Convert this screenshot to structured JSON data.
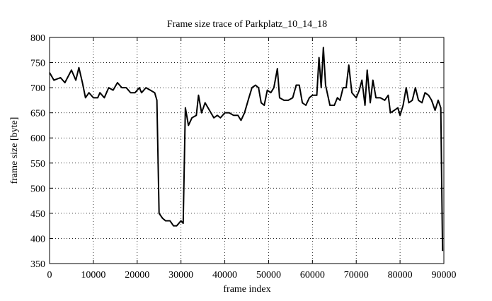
{
  "chart_data": {
    "type": "line",
    "title": "Frame size trace of Parkplatz_10_14_18",
    "xlabel": "frame index",
    "ylabel": "frame size [byte]",
    "xlim": [
      0,
      90000
    ],
    "ylim": [
      350,
      800
    ],
    "xticks": [
      0,
      10000,
      20000,
      30000,
      40000,
      50000,
      60000,
      70000,
      80000,
      90000
    ],
    "yticks": [
      350,
      400,
      450,
      500,
      550,
      600,
      650,
      700,
      750,
      800
    ],
    "grid": true,
    "series": [
      {
        "name": "Parkplatz_10_14_18",
        "color": "#000000",
        "x": [
          0,
          1000,
          2500,
          3500,
          5000,
          6000,
          6700,
          7500,
          8200,
          9000,
          10000,
          11000,
          11500,
          12500,
          13500,
          14500,
          15500,
          16500,
          17500,
          18500,
          19500,
          20500,
          21000,
          22000,
          23000,
          24000,
          24500,
          25000,
          25800,
          26500,
          27500,
          28300,
          29000,
          30000,
          30500,
          31000,
          31700,
          32500,
          33500,
          34000,
          34700,
          35500,
          36500,
          37500,
          38300,
          39000,
          40000,
          41000,
          42000,
          43000,
          43700,
          44500,
          45500,
          46200,
          47000,
          47700,
          48300,
          49000,
          49700,
          50500,
          51200,
          52000,
          52500,
          53500,
          54500,
          55500,
          56300,
          57000,
          57700,
          58500,
          59300,
          60000,
          61000,
          61500,
          62000,
          62500,
          63000,
          64000,
          65000,
          65700,
          66300,
          67000,
          67700,
          68300,
          69000,
          70000,
          70700,
          71300,
          72000,
          72500,
          73200,
          73800,
          74500,
          75500,
          76500,
          77300,
          77800,
          78700,
          79500,
          80000,
          80700,
          81400,
          82000,
          82800,
          83500,
          84200,
          85000,
          85700,
          86500,
          87200,
          88000,
          88700,
          89300,
          89700
        ],
        "values": [
          730,
          715,
          720,
          710,
          735,
          715,
          740,
          710,
          680,
          690,
          680,
          680,
          690,
          680,
          700,
          695,
          710,
          700,
          700,
          690,
          690,
          700,
          690,
          700,
          695,
          690,
          675,
          450,
          440,
          435,
          435,
          425,
          425,
          435,
          430,
          660,
          625,
          640,
          645,
          685,
          650,
          670,
          655,
          640,
          645,
          640,
          650,
          650,
          645,
          645,
          635,
          650,
          680,
          700,
          705,
          700,
          670,
          665,
          695,
          690,
          700,
          738,
          680,
          675,
          675,
          680,
          705,
          705,
          670,
          665,
          680,
          685,
          685,
          760,
          700,
          780,
          705,
          665,
          665,
          680,
          675,
          700,
          700,
          745,
          690,
          680,
          695,
          715,
          665,
          735,
          670,
          715,
          680,
          680,
          675,
          685,
          650,
          655,
          660,
          645,
          665,
          700,
          670,
          675,
          700,
          675,
          670,
          690,
          685,
          675,
          655,
          675,
          660,
          375
        ]
      }
    ]
  }
}
